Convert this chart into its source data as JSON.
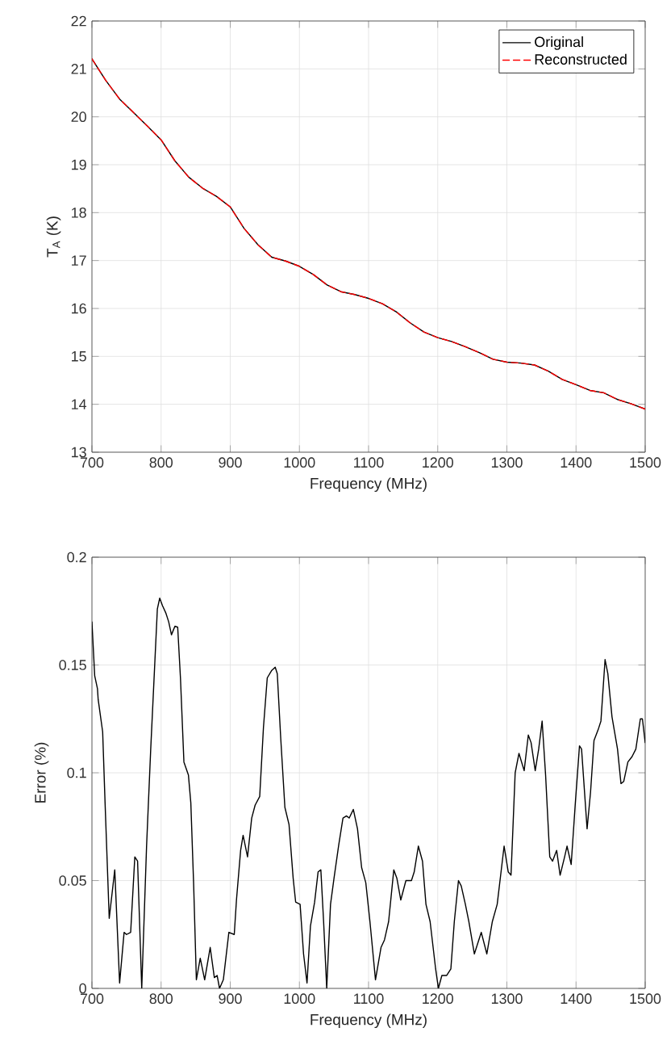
{
  "chart_data": [
    {
      "type": "line",
      "xlabel": "Frequency (MHz)",
      "ylabel": "T$_{A}$ (K)",
      "xlim": [
        700,
        1500
      ],
      "ylim": [
        13,
        22
      ],
      "xticks": [
        700,
        800,
        900,
        1000,
        1100,
        1200,
        1300,
        1400,
        1500
      ],
      "yticks": [
        13,
        14,
        15,
        16,
        17,
        18,
        19,
        20,
        21,
        22
      ],
      "grid": true,
      "legend": "top right",
      "marker": "none",
      "x": [
        700,
        720,
        740,
        760,
        780,
        800,
        820,
        840,
        860,
        880,
        900,
        920,
        940,
        960,
        980,
        1000,
        1020,
        1040,
        1060,
        1080,
        1100,
        1120,
        1140,
        1160,
        1180,
        1200,
        1220,
        1240,
        1260,
        1280,
        1300,
        1320,
        1340,
        1360,
        1380,
        1400,
        1420,
        1440,
        1460,
        1480,
        1500
      ],
      "series": [
        {
          "name": "Original",
          "color": "#000000",
          "line_style": "solid",
          "values": [
            21.21,
            20.76,
            20.37,
            20.09,
            19.81,
            19.52,
            19.08,
            18.74,
            18.51,
            18.34,
            18.12,
            17.67,
            17.33,
            17.07,
            16.99,
            16.88,
            16.71,
            16.49,
            16.35,
            16.29,
            16.21,
            16.1,
            15.93,
            15.7,
            15.51,
            15.39,
            15.31,
            15.2,
            15.08,
            14.94,
            14.88,
            14.86,
            14.82,
            14.69,
            14.52,
            14.41,
            14.29,
            14.24,
            14.1,
            14.01,
            13.9
          ]
        },
        {
          "name": "Reconstructed",
          "color": "#ff0000",
          "line_style": "dashed",
          "values": [
            21.21,
            20.76,
            20.37,
            20.09,
            19.81,
            19.52,
            19.08,
            18.74,
            18.51,
            18.34,
            18.12,
            17.67,
            17.33,
            17.07,
            16.99,
            16.88,
            16.71,
            16.49,
            16.35,
            16.29,
            16.21,
            16.1,
            15.93,
            15.7,
            15.51,
            15.39,
            15.31,
            15.2,
            15.08,
            14.94,
            14.88,
            14.86,
            14.82,
            14.69,
            14.52,
            14.41,
            14.29,
            14.24,
            14.1,
            14.01,
            13.9
          ]
        }
      ]
    },
    {
      "type": "line",
      "xlabel": "Frequency (MHz)",
      "ylabel": "Error (%)",
      "xlim": [
        700,
        1500
      ],
      "ylim": [
        0,
        0.2
      ],
      "xticks": [
        700,
        800,
        900,
        1000,
        1100,
        1200,
        1300,
        1400,
        1500
      ],
      "yticks": [
        0,
        0.05,
        0.1,
        0.15,
        0.2
      ],
      "grid": true,
      "legend": false,
      "marker": "none",
      "x": [
        700,
        704,
        708,
        709,
        715.5,
        719,
        725,
        733,
        740,
        746.5,
        750,
        756,
        762,
        766,
        772,
        779,
        785,
        794.6,
        798,
        802,
        807,
        811,
        815,
        820,
        824,
        828,
        833,
        839.5,
        843,
        847,
        851,
        856.6,
        863,
        871,
        877,
        881,
        884.5,
        890,
        898,
        905.8,
        909,
        915,
        918.6,
        925,
        931,
        936,
        942.6,
        948,
        953.5,
        960,
        965,
        968,
        973,
        979,
        985,
        991,
        994.6,
        1001,
        1006,
        1011,
        1016,
        1022,
        1027,
        1031,
        1035,
        1039.5,
        1045,
        1050,
        1056.6,
        1063,
        1068,
        1072,
        1078,
        1084,
        1090,
        1096,
        1102,
        1110,
        1118,
        1123,
        1129,
        1136.5,
        1141,
        1146.6,
        1154,
        1162,
        1166,
        1172,
        1178,
        1183,
        1189,
        1197,
        1201,
        1206,
        1213,
        1219,
        1224,
        1230,
        1234,
        1240,
        1245,
        1253,
        1258,
        1263,
        1271,
        1279,
        1286,
        1296,
        1302,
        1306,
        1312,
        1317.5,
        1325,
        1331,
        1335,
        1341,
        1346,
        1351,
        1356,
        1362,
        1366,
        1372,
        1377,
        1383.5,
        1387,
        1393,
        1399,
        1405,
        1408,
        1416,
        1421,
        1426,
        1432,
        1436,
        1442,
        1446,
        1452,
        1460,
        1465,
        1469,
        1475,
        1481,
        1486.5,
        1493,
        1496,
        1500
      ],
      "series": [
        {
          "color": "#000000",
          "line_style": "solid",
          "values": [
            0.17,
            0.145,
            0.139,
            0.134,
            0.119,
            0.086,
            0.0325,
            0.055,
            0.0025,
            0.026,
            0.025,
            0.026,
            0.061,
            0.059,
            0,
            0.066,
            0.111,
            0.176,
            0.181,
            0.1775,
            0.174,
            0.17,
            0.164,
            0.168,
            0.1675,
            0.144,
            0.105,
            0.099,
            0.086,
            0.049,
            0.004,
            0.014,
            0.004,
            0.019,
            0.005,
            0.006,
            0,
            0.004,
            0.026,
            0.025,
            0.041,
            0.064,
            0.071,
            0.061,
            0.079,
            0.085,
            0.089,
            0.121,
            0.144,
            0.1475,
            0.149,
            0.146,
            0.116,
            0.084,
            0.076,
            0.051,
            0.04,
            0.039,
            0.016,
            0.0025,
            0.029,
            0.04,
            0.054,
            0.055,
            0.031,
            0,
            0.039,
            0.051,
            0.066,
            0.079,
            0.08,
            0.079,
            0.083,
            0.074,
            0.056,
            0.049,
            0.031,
            0.004,
            0.019,
            0.0225,
            0.031,
            0.055,
            0.051,
            0.041,
            0.05,
            0.05,
            0.054,
            0.066,
            0.059,
            0.039,
            0.031,
            0.009,
            0,
            0.006,
            0.006,
            0.009,
            0.031,
            0.05,
            0.0475,
            0.039,
            0.031,
            0.016,
            0.021,
            0.026,
            0.016,
            0.031,
            0.039,
            0.066,
            0.054,
            0.0525,
            0.1,
            0.109,
            0.101,
            0.1175,
            0.114,
            0.101,
            0.111,
            0.124,
            0.099,
            0.061,
            0.059,
            0.064,
            0.0525,
            0.061,
            0.066,
            0.0575,
            0.086,
            0.1125,
            0.111,
            0.074,
            0.091,
            0.115,
            0.12,
            0.124,
            0.1525,
            0.146,
            0.126,
            0.111,
            0.095,
            0.096,
            0.105,
            0.1075,
            0.111,
            0.125,
            0.125,
            0.114
          ]
        }
      ]
    }
  ]
}
